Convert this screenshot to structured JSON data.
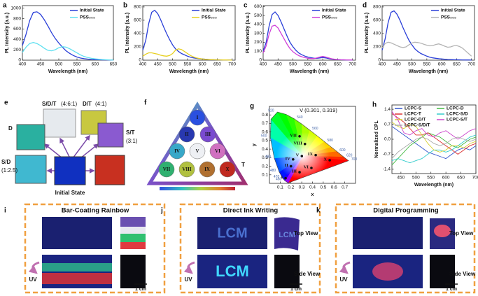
{
  "chart_data": [
    {
      "type": "line",
      "panel": "a",
      "xlabel": "Wavelength (nm)",
      "ylabel": "PL Intensity (a.u.)",
      "legend": "upper right",
      "xlim": [
        400,
        650
      ],
      "xticks": [
        400,
        450,
        500,
        550,
        600,
        650
      ],
      "ylim": [
        0,
        1050
      ],
      "yticks": [
        0,
        200,
        400,
        600,
        800,
        1000
      ],
      "x": [
        400,
        410,
        420,
        430,
        440,
        450,
        460,
        470,
        480,
        490,
        500,
        510,
        520,
        530,
        540,
        550,
        560,
        570,
        580,
        590,
        600,
        610,
        620,
        630,
        640,
        650
      ],
      "series": [
        {
          "name": "Initial State",
          "color": "#2a3fd8",
          "values": [
            280,
            500,
            760,
            920,
            930,
            880,
            780,
            660,
            530,
            420,
            330,
            250,
            180,
            130,
            90,
            60,
            40,
            28,
            20,
            14,
            10,
            8,
            6,
            5,
            4,
            3
          ]
        },
        {
          "name": "PSS₅₆₅",
          "color": "#5fe0f0",
          "values": [
            150,
            250,
            320,
            340,
            320,
            280,
            230,
            190,
            180,
            200,
            240,
            260,
            250,
            220,
            180,
            140,
            100,
            70,
            50,
            35,
            25,
            18,
            12,
            8,
            5,
            3
          ]
        }
      ]
    },
    {
      "type": "line",
      "panel": "b",
      "xlabel": "Wavelength (nm)",
      "ylabel": "PL Intensity (a.u.)",
      "legend": "upper right",
      "xlim": [
        400,
        710
      ],
      "xticks": [
        400,
        450,
        500,
        550,
        600,
        650,
        700
      ],
      "ylim": [
        0,
        820
      ],
      "yticks": [
        0,
        200,
        400,
        600,
        800
      ],
      "x": [
        400,
        410,
        420,
        430,
        440,
        450,
        460,
        470,
        480,
        490,
        500,
        510,
        520,
        530,
        540,
        550,
        560,
        570,
        580,
        590,
        600,
        610,
        620,
        630,
        640,
        650,
        660,
        670,
        680,
        690,
        700
      ],
      "series": [
        {
          "name": "Initial State",
          "color": "#2a3fd8",
          "values": [
            150,
            300,
            550,
            720,
            750,
            700,
            610,
            500,
            400,
            310,
            230,
            170,
            130,
            100,
            80,
            60,
            45,
            35,
            28,
            22,
            18,
            14,
            11,
            9,
            7,
            6,
            5,
            4,
            3,
            3,
            2
          ]
        },
        {
          "name": "PSS₅₆₅",
          "color": "#e8d020",
          "values": [
            60,
            90,
            110,
            110,
            100,
            90,
            75,
            65,
            60,
            70,
            100,
            150,
            170,
            160,
            130,
            100,
            70,
            50,
            35,
            25,
            18,
            14,
            10,
            8,
            6,
            5,
            4,
            3,
            3,
            2,
            2
          ]
        }
      ]
    },
    {
      "type": "line",
      "panel": "c",
      "xlabel": "Wavelength (nm)",
      "ylabel": "PL Intensity (a.u.)",
      "legend": "upper right",
      "xlim": [
        400,
        710
      ],
      "xticks": [
        400,
        450,
        500,
        550,
        600,
        650,
        700
      ],
      "ylim": [
        0,
        610
      ],
      "yticks": [
        0,
        100,
        200,
        300,
        400,
        500,
        600
      ],
      "x": [
        400,
        410,
        420,
        430,
        440,
        450,
        460,
        470,
        480,
        490,
        500,
        510,
        520,
        530,
        540,
        550,
        560,
        570,
        580,
        590,
        600,
        610,
        620,
        630,
        640,
        650,
        660,
        670,
        680,
        690,
        700
      ],
      "series": [
        {
          "name": "Initial State",
          "color": "#2a3fd8",
          "values": [
            100,
            200,
            380,
            510,
            540,
            500,
            430,
            350,
            270,
            200,
            150,
            110,
            80,
            60,
            45,
            35,
            28,
            22,
            20,
            25,
            30,
            25,
            18,
            12,
            8,
            6,
            5,
            4,
            3,
            2,
            2
          ]
        },
        {
          "name": "PSS₅₆₅",
          "color": "#d040d8",
          "values": [
            80,
            160,
            290,
            380,
            390,
            360,
            300,
            240,
            180,
            130,
            95,
            70,
            50,
            38,
            28,
            22,
            18,
            18,
            25,
            35,
            42,
            35,
            25,
            16,
            10,
            7,
            5,
            4,
            3,
            2,
            2
          ]
        }
      ]
    },
    {
      "type": "line",
      "panel": "d",
      "xlabel": "Wavelength (nm)",
      "ylabel": "PL Intensity (a.u.)",
      "legend": "upper right",
      "xlim": [
        400,
        710
      ],
      "xticks": [
        400,
        450,
        500,
        550,
        600,
        650,
        700
      ],
      "ylim": [
        0,
        820
      ],
      "yticks": [
        0,
        200,
        400,
        600,
        800
      ],
      "x": [
        400,
        410,
        420,
        430,
        440,
        450,
        460,
        470,
        480,
        490,
        500,
        510,
        520,
        530,
        540,
        550,
        560,
        570,
        580,
        590,
        600,
        610,
        620,
        630,
        640,
        650,
        660,
        670,
        680,
        690,
        700
      ],
      "series": [
        {
          "name": "Initial State",
          "color": "#2a3fd8",
          "values": [
            150,
            320,
            560,
            720,
            740,
            690,
            600,
            490,
            390,
            300,
            230,
            170,
            130,
            100,
            80,
            60,
            45,
            35,
            28,
            22,
            18,
            14,
            11,
            9,
            7,
            6,
            5,
            4,
            3,
            3,
            2
          ]
        },
        {
          "name": "PSS₅₆₅",
          "color": "#b4b4b4",
          "values": [
            180,
            250,
            270,
            260,
            240,
            220,
            200,
            190,
            200,
            230,
            260,
            270,
            265,
            255,
            240,
            225,
            215,
            220,
            235,
            245,
            230,
            210,
            195,
            200,
            215,
            220,
            205,
            180,
            140,
            100,
            60
          ]
        }
      ]
    },
    {
      "type": "scatter",
      "panel": "g",
      "xlabel": "x",
      "ylabel": "y",
      "annotation": "V (0.301, 0.319)",
      "xlim": [
        0,
        0.8
      ],
      "xticks": [
        0.1,
        0.2,
        0.3,
        0.4,
        0.5,
        0.6,
        0.7
      ],
      "ylim": [
        0,
        0.9
      ],
      "yticks": [
        0.1,
        0.2,
        0.3,
        0.4,
        0.5,
        0.6,
        0.7,
        0.8
      ],
      "locus_labels": [
        460,
        470,
        480,
        490,
        500,
        520,
        540,
        560,
        580,
        600,
        620,
        700
      ],
      "labels": [
        "I",
        "II",
        "III",
        "IV",
        "V",
        "VI",
        "VII",
        "VIII",
        "IX",
        "X"
      ],
      "x": [
        0.15,
        0.2,
        0.28,
        0.22,
        0.301,
        0.39,
        0.28,
        0.33,
        0.43,
        0.56
      ],
      "values": [
        0.06,
        0.2,
        0.13,
        0.28,
        0.319,
        0.18,
        0.55,
        0.46,
        0.33,
        0.27
      ],
      "color": "#111111"
    },
    {
      "type": "line",
      "panel": "h",
      "xlabel": "Wavelength (nm)",
      "ylabel": "Normalized CPL",
      "legend": "upper center",
      "xlim": [
        420,
        700
      ],
      "xticks": [
        450,
        500,
        550,
        600,
        650,
        700
      ],
      "ylim": [
        -1.6,
        1.6
      ],
      "yticks": [
        -1.4,
        -0.7,
        {
          "value": 0,
          "label": "0.0"
        },
        0.7,
        1.4
      ],
      "x": [
        420,
        440,
        460,
        480,
        500,
        520,
        540,
        560,
        580,
        600,
        620,
        640,
        660,
        680,
        700
      ],
      "series": [
        {
          "name": "LCPC-S",
          "color": "#3355cc",
          "values": [
            0.6,
            0.4,
            0.2,
            0.0,
            -0.2,
            -0.4,
            -0.6,
            -0.7,
            -0.8,
            -0.9,
            -0.7,
            -0.5,
            -0.4,
            -0.5,
            -0.3
          ]
        },
        {
          "name": "LCPC-D",
          "color": "#44bb44",
          "values": [
            -1.2,
            -0.9,
            -0.6,
            -0.3,
            -0.1,
            0.1,
            0.3,
            0.2,
            0.1,
            -0.1,
            -0.3,
            -0.4,
            -0.2,
            0.0,
            0.1
          ]
        },
        {
          "name": "LCPC-T",
          "color": "#dd3333",
          "values": [
            1.2,
            1.0,
            0.8,
            0.5,
            0.2,
            0.2,
            0.3,
            0.1,
            -0.1,
            -0.3,
            -0.5,
            -0.7,
            -0.5,
            -0.3,
            -0.2
          ]
        },
        {
          "name": "LCPC-S/D",
          "color": "#33cccc",
          "values": [
            -1.0,
            -0.9,
            -1.0,
            -1.1,
            -1.0,
            -0.9,
            -0.7,
            -0.5,
            -0.5,
            -0.6,
            -0.5,
            -0.3,
            -0.1,
            0.1,
            0.2
          ]
        },
        {
          "name": "LCPC-D/T",
          "color": "#d8d030",
          "values": [
            0.8,
            0.6,
            0.5,
            0.7,
            0.6,
            0.2,
            -0.2,
            -0.5,
            -0.6,
            -0.5,
            -0.3,
            -0.3,
            -0.4,
            -0.2,
            -0.1
          ]
        },
        {
          "name": "LCPC-S/T",
          "color": "#cc44cc",
          "values": [
            1.3,
            0.9,
            0.3,
            0.2,
            0.4,
            0.5,
            0.2,
            0.1,
            0.3,
            0.4,
            0.2,
            0.0,
            0.2,
            0.4,
            0.5
          ]
        },
        {
          "name": "LCPC-S/D/T",
          "color": "#aaaaaa",
          "values": [
            -0.9,
            -0.6,
            -0.4,
            -0.2,
            0.0,
            0.1,
            0.0,
            -0.2,
            -0.3,
            -0.2,
            0.0,
            0.1,
            0.0,
            -0.1,
            0.0
          ]
        }
      ]
    }
  ],
  "panels": {
    "e": {
      "letter": "e",
      "labels": [
        "S/D/T",
        "(4:6:1)",
        "D/T",
        "(4:1)",
        "D",
        "S/T",
        "(3:1)",
        "S/D",
        "(1:2.5)",
        "T",
        "Initial State"
      ]
    },
    "f": {
      "letter": "f",
      "numerals": [
        "I",
        "II",
        "III",
        "IV",
        "V",
        "VI",
        "VII",
        "VIII",
        "IX",
        "X"
      ]
    },
    "i": {
      "letter": "i",
      "title": "Bar-Coating Rainbow",
      "uv": "UV",
      "scale": "1 cm"
    },
    "j": {
      "letter": "j",
      "title": "Direct Ink Writing",
      "ink": "LCM",
      "top": "Top View",
      "side": "Side View",
      "uv": "UV",
      "scale": "1 cm"
    },
    "k": {
      "letter": "k",
      "title": "Digital Programming",
      "top": "Top View",
      "side": "Side View",
      "uv": "UV",
      "scale": "1 cm"
    }
  }
}
